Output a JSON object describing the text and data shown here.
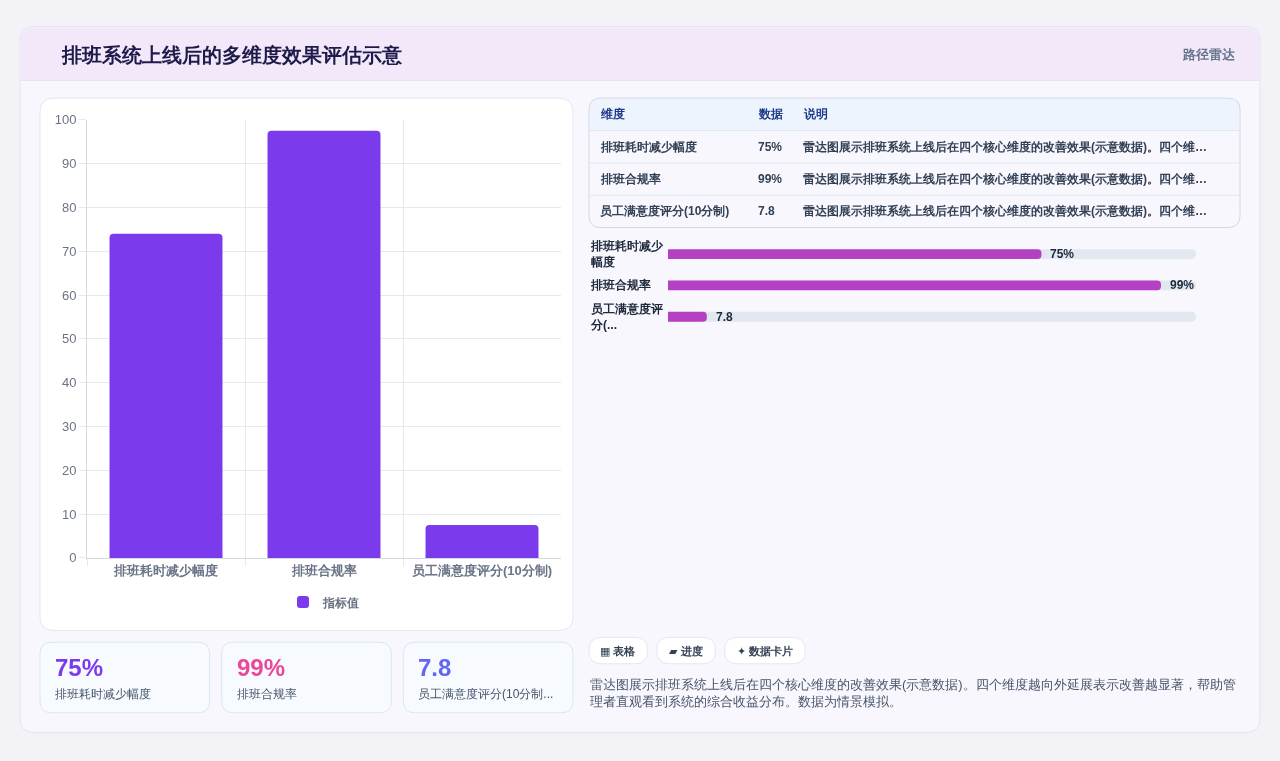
{
  "chart_data": [
    {
      "type": "other",
      "title": "排班系统上线后的多维度效果评估示意",
      "subtitle": "路径雷达"
    },
    {
      "type": "bar",
      "categories": [
        "排班耗时减少幅度",
        "排班合规率",
        "员工满意度评分(10分制)"
      ],
      "series": [
        {
          "name": "指标值",
          "color": "#7c3aed",
          "values": [
            74,
            97.5,
            7.5
          ]
        }
      ],
      "ylim": [
        0,
        100
      ],
      "yticks": [
        0,
        10,
        20,
        30,
        40,
        50,
        60,
        70,
        80,
        90,
        100
      ],
      "grid": true,
      "legend": "bottom"
    },
    {
      "type": "other",
      "categories": [
        "维度",
        "数据",
        "说明"
      ],
      "cell_labels": [
        [
          "排班耗时减少幅度",
          "75%",
          "雷达图展示排班系统上线后在四个核心维度的改善效果(示意数据)。四个维…"
        ],
        [
          "排班合规率",
          "99%",
          "雷达图展示排班系统上线后在四个核心维度的改善效果(示意数据)。四个维…"
        ],
        [
          "员工满意度评分(10分制)",
          "7.8",
          "雷达图展示排班系统上线后在四个核心维度的改善效果(示意数据)。四个维…"
        ]
      ]
    },
    {
      "type": "bar",
      "orientation": "horizontal",
      "categories": [
        "排班耗时减少幅度",
        "排班合规率",
        "员工满意度评分(..."
      ],
      "values": [
        75,
        99,
        7.8
      ],
      "value_labels": [
        "75%",
        "99%",
        "7.8"
      ],
      "color": "#b441c3",
      "tick_labels": "y"
    },
    {
      "type": "other",
      "categories": [
        "排班耗时减少幅度",
        "排班合规率",
        "员工满意度评分(10分制..."
      ],
      "value_labels": [
        "75%",
        "99%",
        "7.8"
      ]
    },
    {
      "type": "other",
      "categories": [
        "▦ 表格",
        "▰ 进度",
        "✦ 数据卡片"
      ],
      "annotations": [
        "雷达图展示排班系统上线后在四个核心维度的改善效果(示意数据)。四个维度越向外延展表示改善越显著，帮助管理者直观看到系统的综合收益分布。数据为情景模拟。"
      ]
    }
  ]
}
